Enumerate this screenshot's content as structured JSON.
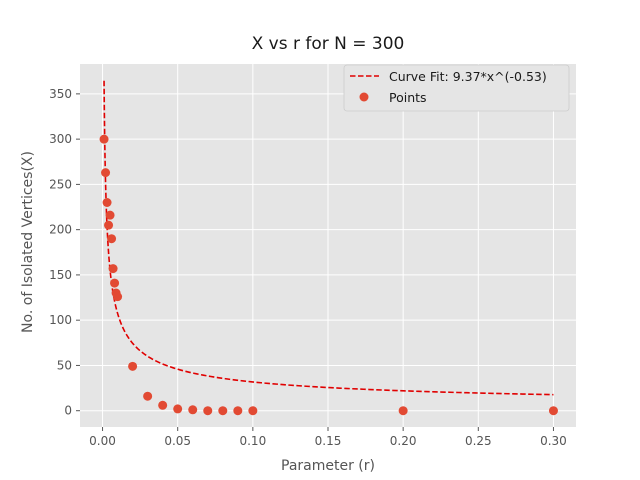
{
  "chart_data": {
    "type": "scatter",
    "title": "X vs r for N = 300",
    "xlabel": "Parameter (r)",
    "ylabel": "No. of Isolated Vertices(X)",
    "xlim": [
      -0.015,
      0.315
    ],
    "ylim": [
      -18,
      383
    ],
    "xticks": [
      0.0,
      0.05,
      0.1,
      0.15,
      0.2,
      0.25,
      0.3
    ],
    "xtick_labels": [
      "0.00",
      "0.05",
      "0.10",
      "0.15",
      "0.20",
      "0.25",
      "0.30"
    ],
    "yticks": [
      0,
      50,
      100,
      150,
      200,
      250,
      300,
      350
    ],
    "ytick_labels": [
      "0",
      "50",
      "100",
      "150",
      "200",
      "250",
      "300",
      "350"
    ],
    "grid": true,
    "legend_position": "top-right",
    "series": [
      {
        "name": "Curve Fit: 9.37*x^(-0.53)",
        "kind": "line",
        "style": "dashed",
        "color": "#e00000",
        "coef": 9.37,
        "exponent": -0.53,
        "x_range": [
          0.001,
          0.3
        ]
      },
      {
        "name": "Points",
        "kind": "scatter",
        "color": "#e24a33",
        "points": [
          [
            0.001,
            300
          ],
          [
            0.002,
            263
          ],
          [
            0.003,
            230
          ],
          [
            0.004,
            205
          ],
          [
            0.005,
            216
          ],
          [
            0.006,
            190
          ],
          [
            0.007,
            157
          ],
          [
            0.008,
            141
          ],
          [
            0.009,
            130
          ],
          [
            0.01,
            126
          ],
          [
            0.02,
            49
          ],
          [
            0.03,
            16
          ],
          [
            0.04,
            6
          ],
          [
            0.05,
            2
          ],
          [
            0.06,
            1
          ],
          [
            0.07,
            0
          ],
          [
            0.08,
            0
          ],
          [
            0.09,
            0
          ],
          [
            0.1,
            0
          ],
          [
            0.2,
            0
          ],
          [
            0.3,
            0
          ]
        ]
      }
    ]
  }
}
